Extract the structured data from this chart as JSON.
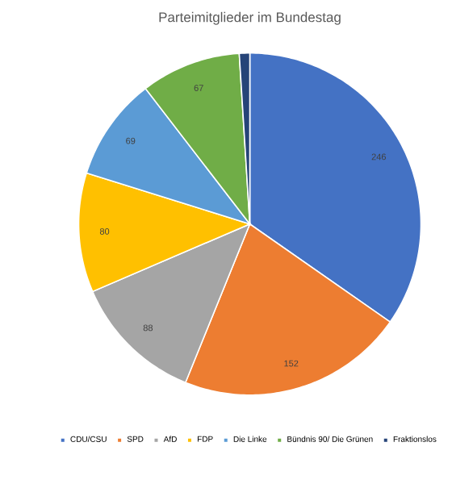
{
  "chart_data": {
    "type": "pie",
    "title": "Parteimitglieder im Bundestag",
    "categories": [
      "CDU/CSU",
      "SPD",
      "AfD",
      "FDP",
      "Die Linke",
      "Bündnis 90/ Die Grünen",
      "Fraktionslos"
    ],
    "values": [
      246,
      152,
      88,
      80,
      69,
      67,
      7
    ],
    "value_labels": [
      "246",
      "152",
      "88",
      "80",
      "69",
      "67",
      null
    ],
    "colors": [
      "#4472c4",
      "#ed7d31",
      "#a5a5a5",
      "#ffc000",
      "#5b9bd5",
      "#70ad47",
      "#264478"
    ],
    "legend": "bottom"
  }
}
